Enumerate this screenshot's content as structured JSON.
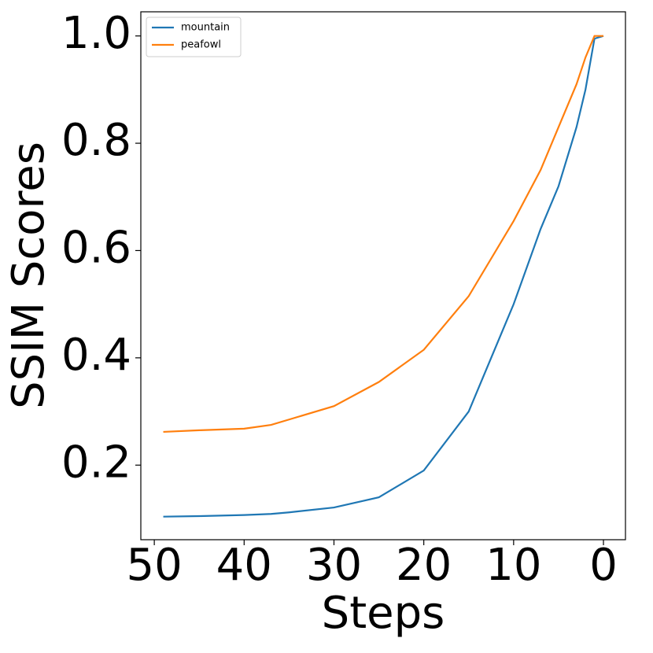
{
  "chart_data": {
    "type": "line",
    "xlabel": "Steps",
    "ylabel": "SSIM Scores",
    "x": [
      49,
      45,
      40,
      37,
      35,
      30,
      25,
      20,
      15,
      10,
      7,
      5,
      3,
      2,
      1,
      0
    ],
    "series": [
      {
        "name": "mountain",
        "color": "#1f77b4",
        "values": [
          0.104,
          0.105,
          0.107,
          0.109,
          0.112,
          0.121,
          0.14,
          0.19,
          0.3,
          0.5,
          0.64,
          0.72,
          0.83,
          0.9,
          0.995,
          1.0
        ]
      },
      {
        "name": "peafowl",
        "color": "#ff7f0e",
        "values": [
          0.262,
          0.265,
          0.268,
          0.275,
          0.285,
          0.31,
          0.355,
          0.415,
          0.515,
          0.655,
          0.75,
          0.83,
          0.91,
          0.96,
          1.0,
          1.0
        ]
      }
    ],
    "xlim": [
      51.5,
      -2.45
    ],
    "xticks": [
      50,
      40,
      30,
      20,
      10,
      0
    ],
    "ylim": [
      0.061,
      1.045
    ],
    "yticks": [
      0.2,
      0.4,
      0.6,
      0.8,
      {
        "value": 1,
        "label": "1.0"
      }
    ],
    "legend": "upper left"
  }
}
